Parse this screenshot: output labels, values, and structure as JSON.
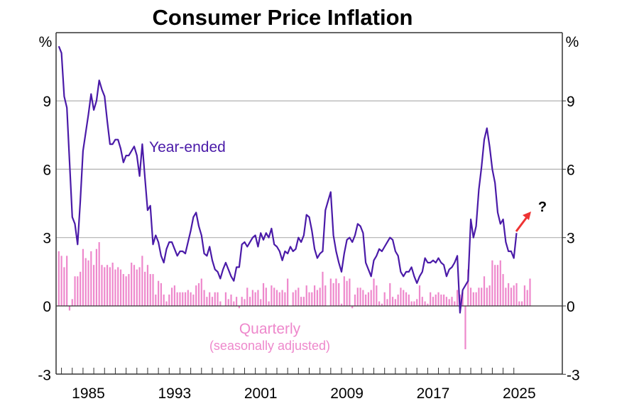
{
  "chart_data": {
    "type": "line",
    "title": "Consumer Price Inflation",
    "ylabel_left": "%",
    "ylabel_right": "%",
    "ylim": [
      -3,
      11.5
    ],
    "yticks": [
      -3,
      0,
      3,
      6,
      9
    ],
    "xlim": [
      1982.5,
      2029.5
    ],
    "xticks": [
      1985,
      1993,
      2001,
      2009,
      2017,
      2025
    ],
    "gridlines": [
      3,
      6,
      9
    ],
    "grid": true,
    "colors": {
      "line": "#4a1aa8",
      "bars": "#ee88cc",
      "arrow": "#ee3333",
      "grid": "#b0b0b0",
      "axis": "#333333"
    },
    "annotations": {
      "line_label": "Year-ended",
      "bar_label_1": "Quarterly",
      "bar_label_2": "(seasonally adjusted)",
      "forecast_marker": "?"
    },
    "series": [
      {
        "name": "Year-ended",
        "type": "line",
        "start": 1982.75,
        "step": 0.25,
        "values": [
          11.4,
          11.1,
          9.2,
          8.7,
          6.3,
          3.9,
          3.6,
          2.7,
          4.6,
          6.8,
          7.6,
          8.4,
          9.3,
          8.6,
          9.0,
          9.9,
          9.5,
          9.2,
          8.1,
          7.1,
          7.1,
          7.3,
          7.3,
          6.9,
          6.3,
          6.6,
          6.6,
          6.8,
          7.0,
          6.6,
          5.7,
          7.1,
          5.6,
          4.2,
          4.4,
          2.7,
          3.1,
          2.8,
          2.2,
          1.9,
          2.5,
          2.8,
          2.8,
          2.5,
          2.2,
          2.4,
          2.4,
          2.3,
          2.8,
          3.3,
          3.9,
          4.1,
          3.5,
          3.1,
          2.3,
          2.2,
          2.6,
          2.0,
          1.6,
          1.5,
          1.2,
          1.6,
          1.9,
          1.6,
          1.3,
          1.1,
          1.7,
          1.7,
          2.7,
          2.8,
          2.6,
          2.8,
          3.0,
          3.1,
          2.6,
          3.2,
          2.9,
          3.2,
          3.0,
          3.4,
          2.7,
          2.6,
          2.4,
          2.0,
          2.4,
          2.3,
          2.6,
          2.4,
          2.5,
          3.0,
          2.8,
          3.1,
          4.0,
          3.9,
          3.3,
          2.5,
          2.1,
          2.3,
          2.4,
          4.2,
          4.6,
          5.0,
          3.1,
          2.4,
          1.9,
          1.5,
          2.3,
          2.9,
          3.0,
          2.8,
          3.1,
          3.6,
          3.5,
          3.2,
          1.9,
          1.6,
          1.3,
          2.0,
          2.2,
          2.5,
          2.4,
          2.6,
          2.8,
          3.0,
          2.9,
          2.4,
          2.2,
          1.5,
          1.3,
          1.5,
          1.5,
          1.7,
          1.3,
          1.0,
          1.3,
          1.5,
          2.1,
          1.9,
          1.9,
          2.0,
          1.9,
          2.1,
          1.9,
          1.8,
          1.3,
          1.6,
          1.7,
          1.9,
          2.2,
          -0.3,
          0.7,
          0.9,
          1.1,
          3.8,
          3.0,
          3.5,
          5.1,
          6.1,
          7.3,
          7.8,
          7.0,
          6.0,
          5.4,
          4.1,
          3.6,
          3.8,
          2.8,
          2.4,
          2.4,
          2.1,
          3.2
        ]
      },
      {
        "name": "Quarterly (seasonally adjusted)",
        "type": "bar",
        "start": 1982.75,
        "step": 0.25,
        "values": [
          2.4,
          2.2,
          1.7,
          2.2,
          -0.2,
          0.3,
          1.3,
          1.3,
          1.5,
          2.5,
          2.1,
          2.0,
          2.4,
          1.8,
          2.5,
          2.8,
          1.8,
          1.7,
          1.8,
          1.7,
          1.9,
          1.6,
          1.7,
          1.6,
          1.4,
          1.3,
          1.4,
          1.9,
          1.8,
          1.6,
          1.7,
          2.2,
          1.5,
          1.8,
          1.4,
          1.4,
          0.5,
          1.1,
          1.0,
          0.5,
          0.2,
          0.5,
          0.8,
          0.9,
          0.6,
          0.6,
          0.6,
          0.6,
          0.7,
          0.6,
          0.5,
          0.9,
          1.0,
          1.2,
          0.7,
          0.4,
          0.6,
          0.4,
          0.6,
          0.6,
          0.2,
          0.0,
          0.6,
          0.3,
          0.5,
          0.2,
          0.4,
          -0.1,
          0.4,
          0.3,
          0.8,
          0.4,
          0.7,
          0.6,
          0.7,
          0.3,
          1.0,
          0.8,
          0.2,
          0.9,
          0.8,
          0.7,
          0.6,
          0.7,
          0.6,
          1.2,
          0.0,
          0.6,
          0.7,
          0.8,
          0.4,
          0.4,
          0.9,
          0.6,
          0.6,
          0.9,
          0.7,
          0.8,
          1.5,
          0.9,
          0.0,
          1.2,
          1.0,
          1.2,
          1.0,
          0.1,
          1.3,
          1.1,
          1.2,
          -0.1,
          0.5,
          0.8,
          0.8,
          0.7,
          0.5,
          0.6,
          0.7,
          1.2,
          0.9,
          0.2,
          0.1,
          0.6,
          0.3,
          1.0,
          0.4,
          0.3,
          0.5,
          0.8,
          0.7,
          0.6,
          0.5,
          0.2,
          0.2,
          0.3,
          0.9,
          0.4,
          0.2,
          0.1,
          0.6,
          0.4,
          0.5,
          0.6,
          0.5,
          0.5,
          0.4,
          0.3,
          0.4,
          0.2,
          0.7,
          0.5,
          0.6,
          -1.9,
          1.6,
          0.8,
          0.6,
          0.6,
          0.8,
          0.8,
          1.3,
          0.8,
          0.9,
          2.0,
          1.8,
          1.8,
          2.0,
          1.4,
          0.8,
          1.0,
          0.8,
          0.9,
          1.0,
          0.2,
          0.2,
          0.9,
          0.7,
          1.2
        ]
      }
    ]
  }
}
